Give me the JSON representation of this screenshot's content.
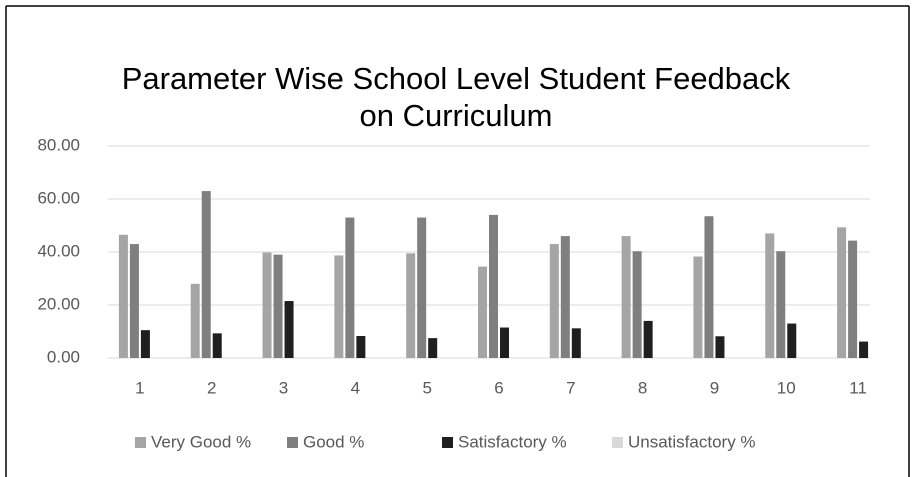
{
  "chart_data": {
    "type": "bar",
    "title": "Parameter Wise School Level Student Feedback on Curriculum",
    "categories": [
      "1",
      "2",
      "3",
      "4",
      "5",
      "6",
      "7",
      "8",
      "9",
      "10",
      "11"
    ],
    "series": [
      {
        "name": "Very Good %",
        "color": "#a5a5a5",
        "values": [
          46.5,
          28,
          39.8,
          38.7,
          39.5,
          34.5,
          43,
          46,
          38.3,
          47,
          49.3
        ]
      },
      {
        "name": "Good %",
        "color": "#7f7f7f",
        "values": [
          43,
          63,
          39,
          53,
          53,
          54,
          46,
          40.3,
          53.5,
          40.3,
          44.3
        ]
      },
      {
        "name": "Satisfactory %",
        "color": "#1f1f1f",
        "values": [
          10.5,
          9.3,
          21.5,
          8.3,
          7.5,
          11.5,
          11.2,
          14,
          8.2,
          13,
          6.2
        ]
      },
      {
        "name": "Unsatisfactory %",
        "color": "#d9d9d9",
        "values": [
          0,
          0,
          0,
          0,
          0,
          0,
          0,
          0,
          0,
          0,
          0
        ]
      }
    ],
    "ylim": [
      0,
      80
    ],
    "yticks": [
      {
        "value": 0,
        "label": "0.00"
      },
      {
        "value": 20,
        "label": "20.00"
      },
      {
        "value": 40,
        "label": "40.00"
      },
      {
        "value": 60,
        "label": "60.00"
      },
      {
        "value": 80,
        "label": "80.00"
      }
    ],
    "grid": true,
    "legend": "bottom"
  }
}
